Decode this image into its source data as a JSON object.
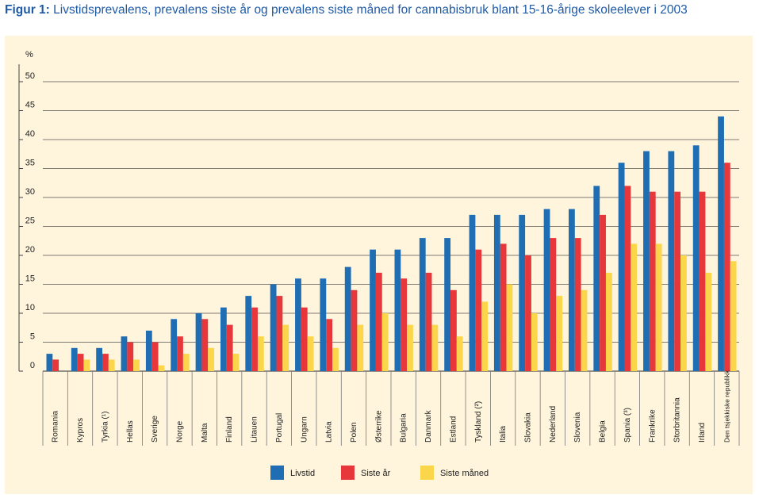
{
  "figure": {
    "label": "Figur 1:",
    "title": "Livstidsprevalens, prevalens siste år og prevalens siste måned for cannabisbruk blant 15-16-årige skoleelever i 2003"
  },
  "chart_data": {
    "type": "bar",
    "title": "Livstidsprevalens, prevalens siste år og prevalens siste måned for cannabisbruk blant 15-16-årige skoleelever i 2003",
    "ylabel": "%",
    "xlabel": "",
    "ylim": [
      0,
      50
    ],
    "yticks": [
      0,
      5,
      10,
      15,
      20,
      25,
      30,
      35,
      40,
      45,
      50
    ],
    "grid": true,
    "legend_position": "bottom",
    "categories": [
      "Romania",
      "Kypros",
      "Tyrkia (¹)",
      "Hellas",
      "Sverige",
      "Norge",
      "Malta",
      "Finland",
      "Litauen",
      "Portugal",
      "Ungarn",
      "Latvia",
      "Polen",
      "Østerrike",
      "Bulgaria",
      "Danmark",
      "Estland",
      "Tyskland (²)",
      "Italia",
      "Slovakia",
      "Nederland",
      "Slovenia",
      "Belgia",
      "Spania (³)",
      "Frankrike",
      "Storbritannia",
      "Irland",
      "Den tsjekkiske republikk"
    ],
    "series": [
      {
        "name": "Livstid",
        "color": "#1f6db3",
        "values": [
          3,
          4,
          4,
          6,
          7,
          9,
          10,
          11,
          13,
          15,
          16,
          16,
          18,
          21,
          21,
          23,
          23,
          27,
          27,
          27,
          28,
          28,
          32,
          36,
          38,
          38,
          39,
          44
        ]
      },
      {
        "name": "Siste år",
        "color": "#e8373a",
        "values": [
          2,
          3,
          3,
          5,
          5,
          6,
          9,
          8,
          11,
          13,
          11,
          9,
          14,
          17,
          16,
          17,
          14,
          21,
          22,
          20,
          23,
          23,
          27,
          32,
          31,
          31,
          31,
          36
        ]
      },
      {
        "name": "Siste måned",
        "color": "#fcd64a",
        "values": [
          0,
          2,
          2,
          2,
          1,
          3,
          4,
          3,
          6,
          8,
          6,
          4,
          8,
          10,
          8,
          8,
          6,
          12,
          15,
          10,
          13,
          14,
          17,
          22,
          22,
          20,
          17,
          19
        ]
      }
    ]
  }
}
